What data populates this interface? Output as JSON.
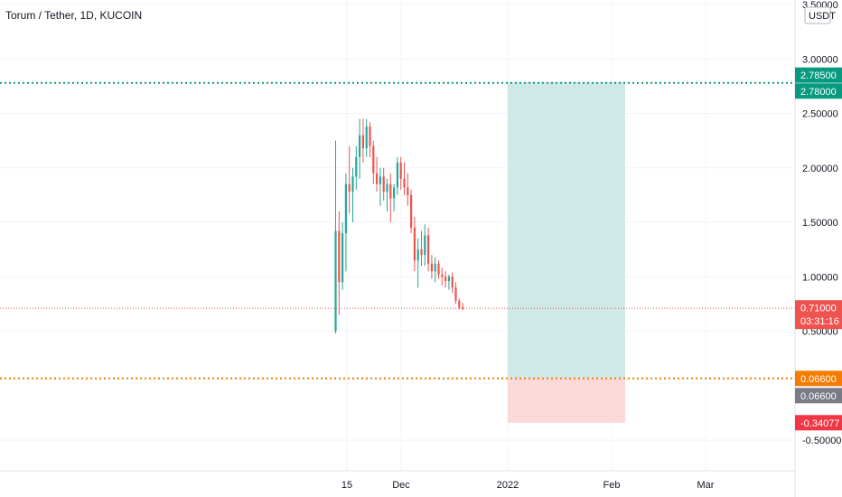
{
  "chart_title": "Torum / Tether, 1D, KUCOIN",
  "currency": "USDT",
  "colors": {
    "up": "#26a69a",
    "down": "#ef5350",
    "grid": "#f0f3fa",
    "profit_zone": "#cfe9e6",
    "loss_zone": "#fcd9d9",
    "target_line": "#089981",
    "entry_line": "#f57c00",
    "current_line": "#ef5350"
  },
  "chart_data": {
    "type": "candlestick",
    "title": "Torum / Tether, 1D, KUCOIN",
    "ylim": [
      -0.75,
      3.5
    ],
    "y_ticks": [
      {
        "value": 3.5,
        "label": "3.50000"
      },
      {
        "value": 3.0,
        "label": "3.00000"
      },
      {
        "value": 2.5,
        "label": "2.50000"
      },
      {
        "value": 2.0,
        "label": "2.00000"
      },
      {
        "value": 1.5,
        "label": "1.50000"
      },
      {
        "value": 1.0,
        "label": "1.00000"
      },
      {
        "value": 0.5,
        "label": "0.50000"
      },
      {
        "value": -0.5,
        "label": "-0.50000"
      }
    ],
    "x_ticks": [
      "15",
      "Dec",
      "2022",
      "Feb",
      "Mar"
    ],
    "candles": [
      {
        "o": 0.5,
        "h": 2.25,
        "l": 0.48,
        "c": 1.42
      },
      {
        "o": 1.42,
        "h": 1.6,
        "l": 0.65,
        "c": 0.95
      },
      {
        "o": 0.95,
        "h": 1.5,
        "l": 0.88,
        "c": 1.4
      },
      {
        "o": 1.4,
        "h": 1.95,
        "l": 1.05,
        "c": 1.85
      },
      {
        "o": 1.85,
        "h": 2.2,
        "l": 1.58,
        "c": 1.78
      },
      {
        "o": 1.78,
        "h": 2.0,
        "l": 1.5,
        "c": 1.92
      },
      {
        "o": 1.92,
        "h": 2.2,
        "l": 1.8,
        "c": 2.1
      },
      {
        "o": 2.1,
        "h": 2.45,
        "l": 1.9,
        "c": 2.3
      },
      {
        "o": 2.3,
        "h": 2.45,
        "l": 2.05,
        "c": 2.18
      },
      {
        "o": 2.18,
        "h": 2.45,
        "l": 2.1,
        "c": 2.38
      },
      {
        "o": 2.38,
        "h": 2.42,
        "l": 2.1,
        "c": 2.2
      },
      {
        "o": 2.2,
        "h": 2.25,
        "l": 1.85,
        "c": 1.95
      },
      {
        "o": 1.95,
        "h": 2.1,
        "l": 1.78,
        "c": 1.85
      },
      {
        "o": 1.85,
        "h": 2.0,
        "l": 1.65,
        "c": 1.92
      },
      {
        "o": 1.92,
        "h": 2.0,
        "l": 1.7,
        "c": 1.78
      },
      {
        "o": 1.78,
        "h": 1.9,
        "l": 1.6,
        "c": 1.85
      },
      {
        "o": 1.85,
        "h": 1.95,
        "l": 1.5,
        "c": 1.72
      },
      {
        "o": 1.72,
        "h": 1.85,
        "l": 1.6,
        "c": 1.82
      },
      {
        "o": 1.82,
        "h": 2.1,
        "l": 1.75,
        "c": 2.05
      },
      {
        "o": 2.05,
        "h": 2.1,
        "l": 1.8,
        "c": 1.9
      },
      {
        "o": 1.9,
        "h": 2.05,
        "l": 1.75,
        "c": 1.82
      },
      {
        "o": 1.82,
        "h": 1.95,
        "l": 1.65,
        "c": 1.75
      },
      {
        "o": 1.75,
        "h": 1.8,
        "l": 1.4,
        "c": 1.45
      },
      {
        "o": 1.45,
        "h": 1.55,
        "l": 1.05,
        "c": 1.15
      },
      {
        "o": 1.15,
        "h": 1.35,
        "l": 0.9,
        "c": 1.25
      },
      {
        "o": 1.25,
        "h": 1.42,
        "l": 1.1,
        "c": 1.2
      },
      {
        "o": 1.2,
        "h": 1.48,
        "l": 1.1,
        "c": 1.38
      },
      {
        "o": 1.38,
        "h": 1.45,
        "l": 1.05,
        "c": 1.12
      },
      {
        "o": 1.12,
        "h": 1.2,
        "l": 0.98,
        "c": 1.05
      },
      {
        "o": 1.05,
        "h": 1.18,
        "l": 0.95,
        "c": 1.12
      },
      {
        "o": 1.12,
        "h": 1.15,
        "l": 0.98,
        "c": 1.02
      },
      {
        "o": 1.02,
        "h": 1.08,
        "l": 0.92,
        "c": 1.0
      },
      {
        "o": 1.0,
        "h": 1.05,
        "l": 0.9,
        "c": 0.96
      },
      {
        "o": 0.96,
        "h": 1.02,
        "l": 0.88,
        "c": 1.0
      },
      {
        "o": 1.0,
        "h": 1.04,
        "l": 0.85,
        "c": 0.9
      },
      {
        "o": 0.9,
        "h": 0.95,
        "l": 0.75,
        "c": 0.78
      },
      {
        "o": 0.78,
        "h": 0.8,
        "l": 0.7,
        "c": 0.72
      },
      {
        "o": 0.72,
        "h": 0.76,
        "l": 0.69,
        "c": 0.71
      }
    ],
    "position": {
      "target": 2.785,
      "entry": 0.066,
      "stop": -0.34077
    },
    "horizontal_lines": [
      {
        "name": "target-line",
        "value": 2.78,
        "color": "#089981"
      },
      {
        "name": "current-price-line",
        "value": 0.71,
        "color": "#ef5350"
      },
      {
        "name": "entry-line",
        "value": 0.066,
        "color": "#f57c00"
      }
    ],
    "price_tags": [
      {
        "name": "target-price-tag",
        "value": 2.785,
        "label": "2.78500",
        "bg": "#089981",
        "fg": "#ffffff"
      },
      {
        "name": "target-line-tag",
        "value": 2.78,
        "label": "2.78000",
        "bg": "#089981",
        "fg": "#ffffff"
      },
      {
        "name": "current-price-tag",
        "value": 0.71,
        "label": "0.71000",
        "sub": "03:31:16",
        "bg": "#ef5350",
        "fg": "#ffffff"
      },
      {
        "name": "entry-price-tag",
        "value": 0.066,
        "label": "0.06600",
        "bg": "#f57c00",
        "fg": "#ffffff"
      },
      {
        "name": "entry-line-tag",
        "value": 0.066,
        "label": "0.06600",
        "bg": "#787b86",
        "fg": "#ffffff"
      },
      {
        "name": "stop-price-tag",
        "value": -0.34077,
        "label": "-0.34077",
        "bg": "#f23645",
        "fg": "#ffffff"
      }
    ]
  }
}
